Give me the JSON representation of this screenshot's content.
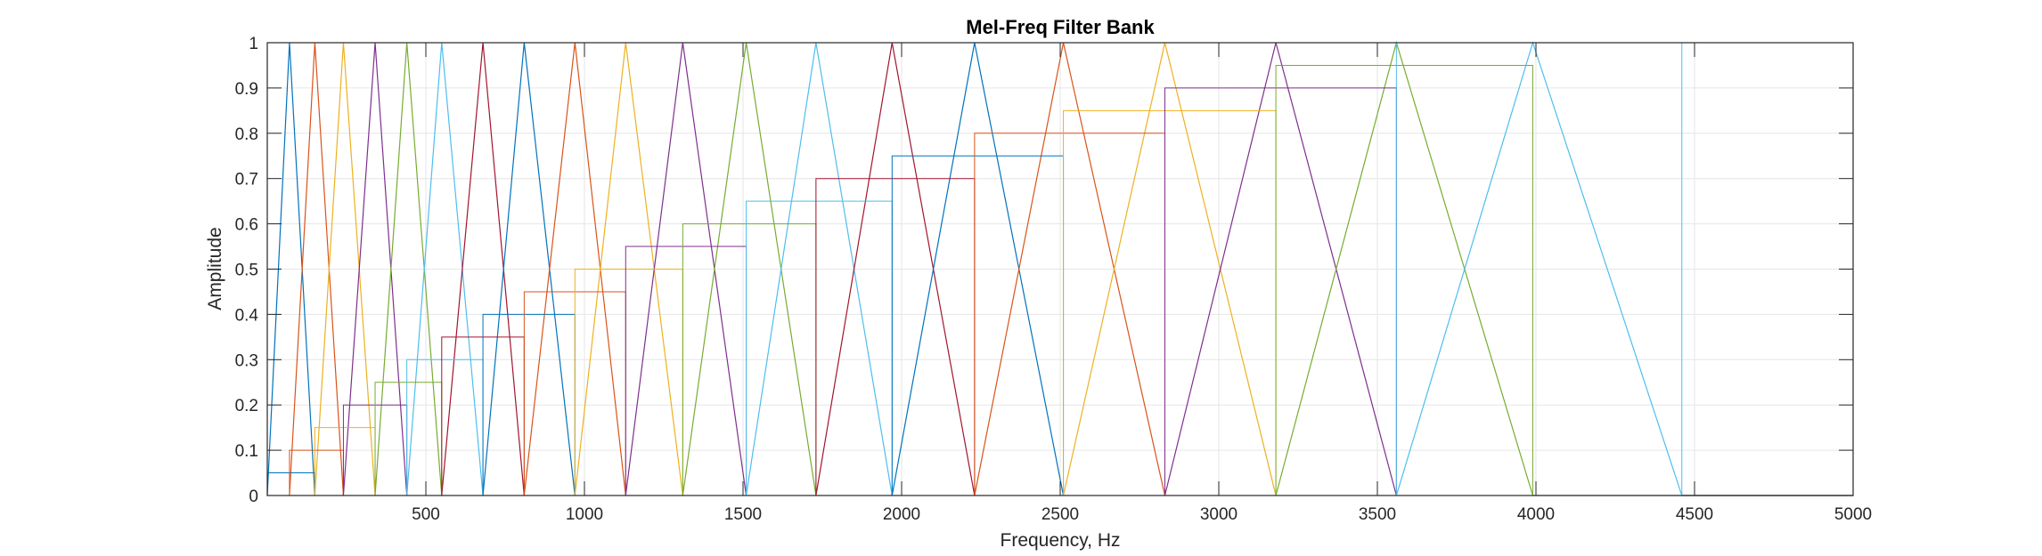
{
  "chart_data": {
    "type": "line",
    "title": "Mel-Freq Filter Bank",
    "xlabel": "Frequency, Hz",
    "ylabel": "Amplitude",
    "xlim": [
      0,
      5000
    ],
    "ylim": [
      0,
      1
    ],
    "xticks": [
      500,
      1000,
      1500,
      2000,
      2500,
      3000,
      3500,
      4000,
      4500,
      5000
    ],
    "yticks": [
      0,
      0.1,
      0.2,
      0.3,
      0.4,
      0.5,
      0.6,
      0.7,
      0.8,
      0.9,
      1
    ],
    "grid": true,
    "colors": [
      "#0072BD",
      "#D95319",
      "#EDB120",
      "#7E2F8E",
      "#77AC30",
      "#4DBEEE",
      "#A2142F"
    ],
    "edges": [
      0,
      70,
      150,
      240,
      340,
      440,
      550,
      680,
      810,
      970,
      1130,
      1310,
      1510,
      1730,
      1970,
      2230,
      2510,
      2830,
      3180,
      3560,
      3990,
      4460
    ],
    "staircase": [
      {
        "x": [
          0,
          150
        ],
        "y": 0.05
      },
      {
        "x": [
          70,
          240
        ],
        "y": 0.1
      },
      {
        "x": [
          150,
          340
        ],
        "y": 0.15
      },
      {
        "x": [
          240,
          440
        ],
        "y": 0.2
      },
      {
        "x": [
          340,
          550
        ],
        "y": 0.25
      },
      {
        "x": [
          440,
          680
        ],
        "y": 0.3
      },
      {
        "x": [
          550,
          810
        ],
        "y": 0.35
      },
      {
        "x": [
          680,
          970
        ],
        "y": 0.4
      },
      {
        "x": [
          810,
          1130
        ],
        "y": 0.45
      },
      {
        "x": [
          970,
          1310
        ],
        "y": 0.5
      },
      {
        "x": [
          1130,
          1510
        ],
        "y": 0.55
      },
      {
        "x": [
          1310,
          1730
        ],
        "y": 0.6
      },
      {
        "x": [
          1510,
          1970
        ],
        "y": 0.65
      },
      {
        "x": [
          1730,
          2230
        ],
        "y": 0.7
      },
      {
        "x": [
          1970,
          2510
        ],
        "y": 0.75
      },
      {
        "x": [
          2230,
          2830
        ],
        "y": 0.8
      },
      {
        "x": [
          2510,
          3180
        ],
        "y": 0.85
      },
      {
        "x": [
          2830,
          3560
        ],
        "y": 0.9
      },
      {
        "x": [
          3180,
          3990
        ],
        "y": 0.95
      },
      {
        "x": [
          3560,
          4460
        ],
        "y": 1.0
      }
    ],
    "flat_lines": [
      {
        "x": [
          3990,
          5000
        ],
        "y": 0
      },
      {
        "x": [
          4460,
          5000
        ],
        "y": 0
      }
    ]
  }
}
